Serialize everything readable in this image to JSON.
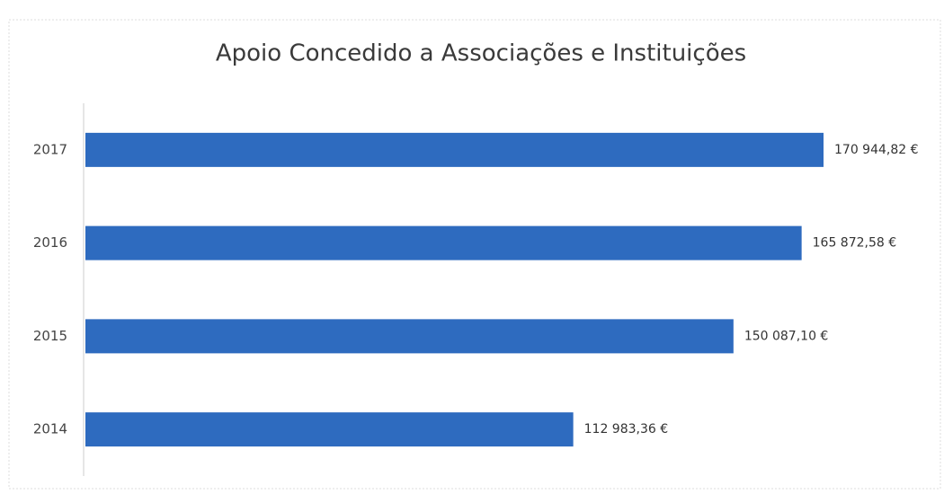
{
  "chart_data": {
    "type": "bar",
    "orientation": "horizontal",
    "title": "Apoio Concedido a Associações e Instituições",
    "categories": [
      "2017",
      "2016",
      "2015",
      "2014"
    ],
    "values": [
      170944.82,
      165872.58,
      150087.1,
      112983.36
    ],
    "value_labels": [
      "170 944,82 €",
      "165 872,58 €",
      "150 087,10 €",
      "112 983,36 €"
    ],
    "color": "#2e6bbf"
  }
}
